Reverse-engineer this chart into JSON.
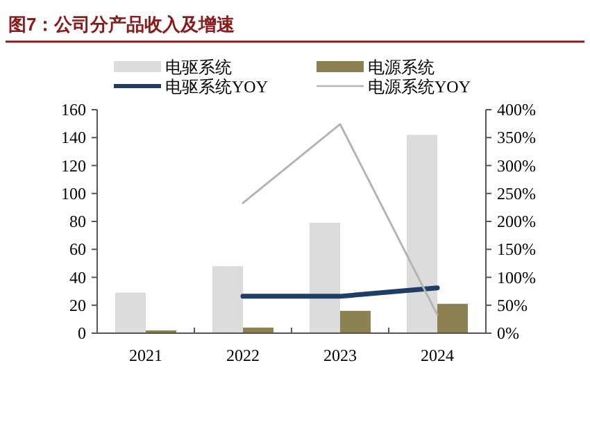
{
  "chart_data": {
    "type": "bar",
    "title": "图7：公司分产品收入及增速",
    "categories": [
      "2021",
      "2022",
      "2023",
      "2024"
    ],
    "series": [
      {
        "name": "电驱系统",
        "color": "#dcdcdc",
        "values": [
          29,
          48,
          79,
          142
        ]
      },
      {
        "name": "电源系统",
        "color": "#8c8150",
        "values": [
          2,
          4,
          16,
          21
        ]
      },
      {
        "name": "电驱系统YOY",
        "type": "line",
        "axis": "y2",
        "color": "#1f3d66",
        "values": [
          null,
          66,
          66,
          81
        ]
      },
      {
        "name": "电源系统YOY",
        "type": "line",
        "axis": "y2",
        "color": "#b4b4b4",
        "values": [
          null,
          233,
          374,
          33
        ]
      }
    ],
    "ylim": [
      0,
      160
    ],
    "yticks": [
      0,
      20,
      40,
      60,
      80,
      100,
      120,
      140,
      160
    ],
    "y2lim": [
      0,
      400
    ],
    "y2ticks": [
      {
        "value": 0,
        "label": "0%"
      },
      {
        "value": 50,
        "label": "50%"
      },
      {
        "value": 100,
        "label": "100%"
      },
      {
        "value": 150,
        "label": "150%"
      },
      {
        "value": 200,
        "label": "200%"
      },
      {
        "value": 250,
        "label": "250%"
      },
      {
        "value": 300,
        "label": "300%"
      },
      {
        "value": 350,
        "label": "350%"
      },
      {
        "value": 400,
        "label": "400%"
      }
    ],
    "grid": false,
    "legend": "top",
    "marker": "none"
  }
}
